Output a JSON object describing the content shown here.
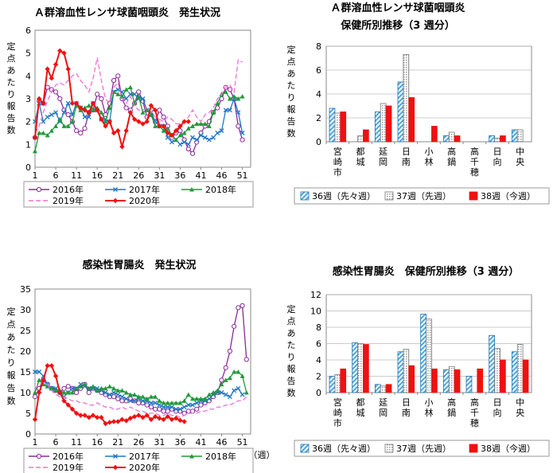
{
  "colors": {
    "y2016": "#8a2a9c",
    "y2017": "#1f77c6",
    "y2018": "#1f9a3a",
    "y2019": "#f070d8",
    "y2020": "#ee1111",
    "w36_fill": "#4aa8e0",
    "w37_fill": "#d8d8d8",
    "w38_fill": "#ee1111"
  },
  "ylabel_chars": [
    "定",
    "点",
    "あ",
    "た",
    "り",
    "報",
    "告",
    "数"
  ],
  "chart_data": [
    {
      "id": "strep-trend",
      "type": "line",
      "title": "Ａ群溶血性レンサ球菌咽頭炎　発生状況",
      "xlabel": "",
      "ylabel": "定点あたり報告数",
      "xticks": [
        "1",
        "6",
        "11",
        "16",
        "21",
        "26",
        "31",
        "36",
        "41",
        "46",
        "51"
      ],
      "ylim": [
        0,
        6
      ],
      "yticks": [
        "0",
        "1",
        "2",
        "3",
        "4",
        "5",
        "6"
      ],
      "series": [
        {
          "name": "2016年",
          "key": "y2016",
          "marker": "circle",
          "dash": false,
          "values": [
            1.3,
            2.9,
            2.8,
            3.5,
            3.4,
            3.3,
            3.0,
            2.5,
            2.3,
            2.0,
            1.6,
            1.5,
            1.7,
            2.4,
            2.5,
            3.2,
            3.0,
            2.3,
            2.8,
            3.8,
            4.0,
            3.0,
            2.6,
            2.5,
            2.8,
            3.3,
            2.9,
            2.2,
            2.3,
            2.0,
            2.5,
            2.2,
            1.8,
            1.3,
            1.5,
            1.6,
            1.2,
            0.8,
            0.6,
            1.1,
            1.5,
            1.8,
            2.0,
            2.4,
            2.6,
            3.0,
            3.5,
            3.4,
            3.0,
            1.8,
            1.2
          ]
        },
        {
          "name": "2017年",
          "key": "y2017",
          "marker": "cross",
          "dash": false,
          "values": [
            2.0,
            2.8,
            2.0,
            2.2,
            2.3,
            2.4,
            2.0,
            2.4,
            2.8,
            2.3,
            2.8,
            2.6,
            2.2,
            2.2,
            2.8,
            2.5,
            2.1,
            2.1,
            2.0,
            3.3,
            3.4,
            3.3,
            3.0,
            3.2,
            3.2,
            3.0,
            3.0,
            2.5,
            2.4,
            2.0,
            1.8,
            1.8,
            1.3,
            1.1,
            1.2,
            1.0,
            1.1,
            1.0,
            1.3,
            1.2,
            1.4,
            1.3,
            1.2,
            1.3,
            1.5,
            1.6,
            2.5,
            2.5,
            3.0,
            2.4,
            1.5
          ]
        },
        {
          "name": "2018年",
          "key": "y2018",
          "marker": "triangle",
          "dash": false,
          "values": [
            0.7,
            1.5,
            1.5,
            1.4,
            1.6,
            1.8,
            2.1,
            1.8,
            1.8,
            2.0,
            2.7,
            2.5,
            2.6,
            2.7,
            2.5,
            2.6,
            2.4,
            2.0,
            2.6,
            3.3,
            3.2,
            3.1,
            3.4,
            3.5,
            2.8,
            3.1,
            2.4,
            2.5,
            2.3,
            1.8,
            1.8,
            1.6,
            1.7,
            1.4,
            1.2,
            1.4,
            1.5,
            1.7,
            1.8,
            1.9,
            1.9,
            1.9,
            1.8,
            2.4,
            2.8,
            3.2,
            3.3,
            3.0,
            3.1,
            3.0,
            3.1
          ]
        },
        {
          "name": "2019年",
          "key": "y2019",
          "marker": "none",
          "dash": true,
          "values": [
            1.5,
            1.8,
            2.4,
            2.9,
            3.3,
            3.6,
            3.7,
            3.6,
            3.8,
            4.0,
            4.1,
            3.8,
            3.6,
            3.3,
            3.9,
            4.8,
            3.8,
            3.0,
            2.8,
            3.5,
            3.7,
            3.0,
            2.8,
            3.1,
            2.7,
            2.5,
            2.5,
            2.6,
            2.4,
            2.2,
            2.1,
            2.0,
            2.2,
            2.1,
            1.9,
            1.9,
            2.0,
            2.2,
            2.5,
            2.2,
            2.0,
            2.3,
            2.4,
            2.6,
            3.0,
            3.2,
            3.5,
            3.6,
            3.3,
            4.7,
            4.6
          ]
        },
        {
          "name": "2020年",
          "key": "y2020",
          "marker": "diamond",
          "dash": false,
          "values": [
            1.3,
            3.0,
            2.8,
            4.3,
            3.9,
            4.5,
            5.1,
            5.0,
            4.3,
            2.8,
            2.8,
            2.6,
            2.5,
            2.4,
            2.8,
            2.5,
            2.1,
            1.8,
            2.0,
            1.5,
            1.6,
            0.9,
            1.6,
            2.4,
            2.1,
            2.0,
            1.9,
            2.0,
            2.7,
            2.5,
            1.8,
            1.8,
            1.5,
            1.4,
            1.6,
            1.8,
            2.0,
            2.0
          ]
        }
      ],
      "legend": "bottom"
    },
    {
      "id": "strep-health-centers",
      "type": "bar",
      "title": "Ａ群溶血性レンサ球菌咽頭炎",
      "subtitle": "保健所別推移（3 週分）",
      "categories": [
        "宮崎市",
        "都城",
        "延岡",
        "日南",
        "小林",
        "高鍋",
        "高千穂",
        "日向",
        "中央"
      ],
      "ylim": [
        0,
        8
      ],
      "yticks": [
        "0",
        "2",
        "4",
        "6",
        "8"
      ],
      "series": [
        {
          "name": "36週（先々週）",
          "key": "w36",
          "values": [
            2.8,
            0.0,
            2.5,
            5.0,
            0.0,
            0.5,
            0.0,
            0.5,
            1.0
          ]
        },
        {
          "name": "37週（先週）",
          "key": "w37",
          "values": [
            2.4,
            0.5,
            3.2,
            7.3,
            0.0,
            0.8,
            0.0,
            0.3,
            1.0
          ]
        },
        {
          "name": "38週（今週）",
          "key": "w38",
          "values": [
            2.5,
            1.0,
            3.0,
            3.7,
            1.3,
            0.5,
            0.0,
            0.5,
            0.0
          ]
        }
      ],
      "legend": "bottom"
    },
    {
      "id": "gastro-trend",
      "type": "line",
      "title": "感染性胃腸炎　発生状況",
      "xlabel": "（週）",
      "ylabel": "定点あたり報告数",
      "xticks": [
        "1",
        "6",
        "11",
        "16",
        "21",
        "26",
        "31",
        "36",
        "41",
        "46",
        "51"
      ],
      "ylim": [
        0,
        35
      ],
      "yticks": [
        "0",
        "5",
        "10",
        "15",
        "20",
        "25",
        "30",
        "35"
      ],
      "series": [
        {
          "name": "2016年",
          "key": "y2016",
          "marker": "circle",
          "dash": false,
          "values": [
            9.0,
            11.0,
            13.0,
            12.0,
            11.0,
            10.5,
            10.0,
            11.0,
            11.5,
            11.0,
            10.0,
            11.0,
            12.0,
            10.0,
            11.0,
            10.5,
            10.0,
            9.5,
            9.0,
            9.0,
            8.5,
            8.0,
            8.0,
            8.5,
            8.0,
            7.5,
            7.5,
            7.0,
            6.5,
            6.0,
            6.0,
            5.5,
            5.5,
            6.0,
            5.5,
            5.5,
            5.0,
            5.5,
            5.5,
            6.0,
            7.0,
            7.5,
            8.0,
            9.0,
            10.0,
            13.0,
            16.0,
            20.0,
            26.0,
            30.5,
            31.0,
            18.0
          ]
        },
        {
          "name": "2017年",
          "key": "y2017",
          "marker": "cross",
          "dash": false,
          "values": [
            15.0,
            15.0,
            14.0,
            12.0,
            11.0,
            11.0,
            10.0,
            9.0,
            10.0,
            11.0,
            11.0,
            12.0,
            11.5,
            11.0,
            11.0,
            11.0,
            10.5,
            10.0,
            9.5,
            10.0,
            9.5,
            9.0,
            8.5,
            8.0,
            8.0,
            8.5,
            8.0,
            8.0,
            7.5,
            7.5,
            7.0,
            6.5,
            6.5,
            6.5,
            6.0,
            6.0,
            6.5,
            7.0,
            7.0,
            7.5,
            8.0,
            8.0,
            8.5,
            9.5,
            10.0,
            10.0,
            9.5,
            9.0,
            10.5,
            11.0,
            9.5
          ]
        },
        {
          "name": "2018年",
          "key": "y2018",
          "marker": "triangle",
          "dash": false,
          "values": [
            10.0,
            13.0,
            12.0,
            11.5,
            11.0,
            10.5,
            10.5,
            10.0,
            10.0,
            10.0,
            11.0,
            11.5,
            12.0,
            11.0,
            11.5,
            10.5,
            11.0,
            11.0,
            11.5,
            11.0,
            10.5,
            10.5,
            10.0,
            9.5,
            9.5,
            9.0,
            9.0,
            8.5,
            9.0,
            9.0,
            8.0,
            7.5,
            7.5,
            7.5,
            7.5,
            7.5,
            8.0,
            9.5,
            8.5,
            8.5,
            8.5,
            8.5,
            9.5,
            10.0,
            10.5,
            12.0,
            13.0,
            13.5,
            15.0,
            15.0,
            14.0,
            10.0
          ]
        },
        {
          "name": "2019年",
          "key": "y2019",
          "marker": "none",
          "dash": true,
          "values": [
            11.0,
            12.0,
            12.5,
            12.0,
            10.5,
            9.5,
            9.0,
            9.0,
            8.5,
            8.0,
            8.0,
            7.5,
            7.5,
            7.0,
            7.0,
            7.5,
            7.0,
            6.5,
            6.5,
            6.0,
            6.0,
            6.5,
            6.0,
            6.5,
            6.0,
            5.5,
            5.5,
            5.0,
            5.0,
            5.0,
            4.5,
            4.5,
            5.0,
            4.5,
            4.5,
            4.0,
            4.5,
            5.0,
            5.0,
            5.0,
            5.5,
            5.5,
            6.0,
            6.0,
            6.5,
            6.5,
            7.0,
            7.0,
            7.5,
            8.0,
            8.0,
            9.0
          ]
        },
        {
          "name": "2020年",
          "key": "y2020",
          "marker": "diamond",
          "dash": false,
          "values": [
            3.5,
            10.0,
            13.0,
            16.5,
            16.5,
            14.0,
            10.0,
            8.0,
            7.0,
            6.0,
            5.0,
            4.5,
            4.5,
            4.0,
            4.5,
            4.0,
            4.0,
            2.5,
            2.8,
            3.0,
            3.0,
            3.5,
            3.2,
            3.8,
            4.2,
            4.5,
            4.0,
            4.5,
            3.5,
            4.2,
            3.8,
            3.5,
            4.2,
            3.5,
            3.8,
            3.3,
            3.0
          ]
        }
      ],
      "legend": "bottom"
    },
    {
      "id": "gastro-health-centers",
      "type": "bar",
      "title": "感染性胃腸炎　保健所別推移（3 週分）",
      "categories": [
        "宮崎市",
        "都城",
        "延岡",
        "日南",
        "小林",
        "高鍋",
        "高千穂",
        "日向",
        "中央"
      ],
      "ylim": [
        0,
        12
      ],
      "yticks": [
        "0",
        "2",
        "4",
        "6",
        "8",
        "10",
        "12"
      ],
      "series": [
        {
          "name": "36週（先々週）",
          "key": "w36",
          "values": [
            2.0,
            6.1,
            1.0,
            5.0,
            9.6,
            2.8,
            2.0,
            7.0,
            5.0
          ]
        },
        {
          "name": "37週（先週）",
          "key": "w37",
          "values": [
            2.2,
            6.0,
            0.8,
            5.3,
            9.0,
            3.2,
            0.0,
            5.4,
            5.9
          ]
        },
        {
          "name": "38週（今週）",
          "key": "w38",
          "values": [
            2.9,
            5.9,
            1.0,
            3.3,
            2.9,
            2.8,
            2.9,
            4.0,
            4.0
          ]
        }
      ],
      "legend": "bottom"
    }
  ]
}
